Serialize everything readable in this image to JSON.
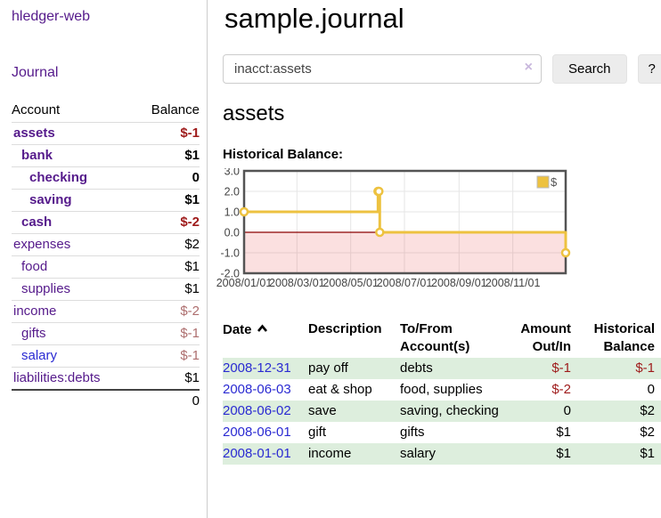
{
  "app": {
    "title": "hledger-web",
    "nav_journal": "Journal"
  },
  "colors": {
    "link_purple": "#551a8b",
    "link_blue": "#2a2ad2",
    "negative_strong": "#9e1a1a",
    "negative_muted": "#ad6e6e",
    "row_green": "#ddeedd",
    "series_yellow": "#edc240",
    "zero_line_red": "#8b0000"
  },
  "sidebar": {
    "header": {
      "account": "Account",
      "balance": "Balance"
    },
    "accounts": [
      {
        "name": "assets",
        "indent": 0,
        "bold": true,
        "balance": "$-1",
        "balance_style": "neg-strong"
      },
      {
        "name": "bank",
        "indent": 1,
        "bold": true,
        "balance": "$1",
        "balance_style": ""
      },
      {
        "name": "checking",
        "indent": 2,
        "bold": true,
        "balance": "0",
        "balance_style": ""
      },
      {
        "name": "saving",
        "indent": 2,
        "bold": true,
        "balance": "$1",
        "balance_style": ""
      },
      {
        "name": "cash",
        "indent": 1,
        "bold": true,
        "balance": "$-2",
        "balance_style": "neg-strong"
      },
      {
        "name": "expenses",
        "indent": 0,
        "bold": false,
        "balance": "$2",
        "balance_style": ""
      },
      {
        "name": "food",
        "indent": 1,
        "bold": false,
        "balance": "$1",
        "balance_style": ""
      },
      {
        "name": "supplies",
        "indent": 1,
        "bold": false,
        "balance": "$1",
        "balance_style": ""
      },
      {
        "name": "income",
        "indent": 0,
        "bold": false,
        "balance": "$-2",
        "balance_style": "neg-muted"
      },
      {
        "name": "gifts",
        "indent": 1,
        "bold": false,
        "balance": "$-1",
        "balance_style": "neg-muted"
      },
      {
        "name": "salary",
        "indent": 1,
        "bold": false,
        "balance": "$-1",
        "balance_style": "neg-muted",
        "link_style": "blue"
      },
      {
        "name": "liabilities:debts",
        "indent": 0,
        "bold": false,
        "balance": "$1",
        "balance_style": ""
      }
    ],
    "total": "0"
  },
  "header": {
    "title": "sample.journal"
  },
  "search": {
    "value": "inacct:assets",
    "clear_icon": "×",
    "button_label": "Search",
    "help_label": "?"
  },
  "account_page": {
    "title": "assets",
    "chart_label": "Historical Balance:"
  },
  "chart_data": {
    "type": "line",
    "style": "steps",
    "title": "Historical Balance",
    "series": [
      {
        "name": "$",
        "color": "#edc240",
        "points": [
          [
            "2008-01-01",
            1
          ],
          [
            "2008-06-01",
            2
          ],
          [
            "2008-06-02",
            2
          ],
          [
            "2008-06-03",
            0
          ],
          [
            "2008-12-31",
            -1
          ]
        ]
      }
    ],
    "x_range": [
      "2008-01-01",
      "2008-12-31"
    ],
    "x_tick_labels": [
      "2008/01/01",
      "2008/03/01",
      "2008/05/01",
      "2008/07/01",
      "2008/09/01",
      "2008/11/01"
    ],
    "x_tick_days": [
      0,
      60,
      121,
      182,
      244,
      305
    ],
    "y_ticks": [
      3.0,
      2.0,
      1.0,
      0.0,
      -1.0,
      -2.0
    ],
    "ylim": [
      -2,
      3
    ],
    "grid": true,
    "legend": {
      "label": "$",
      "position": "top-right"
    },
    "negative_region_fill": "rgba(220,0,0,0.12)",
    "zero_line_color": "#8b0000"
  },
  "register": {
    "header": {
      "date": "Date",
      "description": "Description",
      "accounts": "To/From Account(s)",
      "amount": "Amount Out/In",
      "balance": "Historical Balance"
    },
    "rows": [
      {
        "date": "2008-12-31",
        "description": "pay off",
        "accounts": "debts",
        "amount": "$-1",
        "amount_negative": true,
        "balance": "$-1",
        "balance_negative": true
      },
      {
        "date": "2008-06-03",
        "description": "eat & shop",
        "accounts": "food, supplies",
        "amount": "$-2",
        "amount_negative": true,
        "balance": "0",
        "balance_negative": false
      },
      {
        "date": "2008-06-02",
        "description": "save",
        "accounts": "saving, checking",
        "amount": "0",
        "amount_negative": false,
        "balance": "$2",
        "balance_negative": false
      },
      {
        "date": "2008-06-01",
        "description": "gift",
        "accounts": "gifts",
        "amount": "$1",
        "amount_negative": false,
        "balance": "$2",
        "balance_negative": false
      },
      {
        "date": "2008-01-01",
        "description": "income",
        "accounts": "salary",
        "amount": "$1",
        "amount_negative": false,
        "balance": "$1",
        "balance_negative": false
      }
    ]
  }
}
